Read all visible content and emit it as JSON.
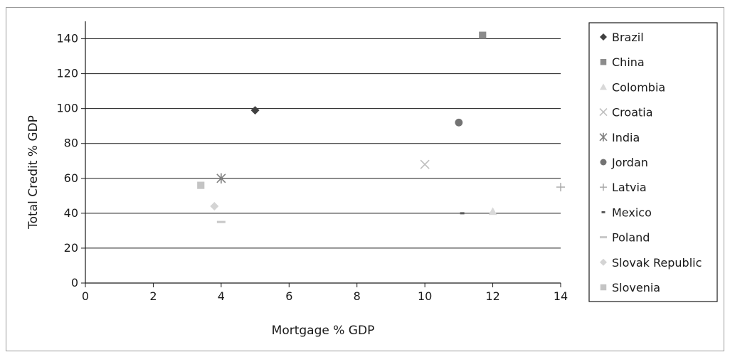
{
  "chart_data": {
    "type": "scatter",
    "title": "",
    "xlabel": "Mortgage % GDP",
    "ylabel": "Total Credit % GDP",
    "xlim": [
      0,
      14
    ],
    "ylim": [
      0,
      150
    ],
    "x_ticks": [
      0,
      2,
      4,
      6,
      8,
      10,
      12,
      14
    ],
    "y_ticks": [
      0,
      20,
      40,
      60,
      80,
      100,
      120,
      140
    ],
    "grid": "horizontal",
    "legend_position": "right",
    "series": [
      {
        "name": "Brazil",
        "marker": "diamond",
        "color": "#404040",
        "x": [
          5.0
        ],
        "y": [
          99
        ]
      },
      {
        "name": "China",
        "marker": "square",
        "color": "#8c8c8c",
        "x": [
          11.7
        ],
        "y": [
          142
        ]
      },
      {
        "name": "Colombia",
        "marker": "triangle",
        "color": "#d9d9d9",
        "x": [
          12.0
        ],
        "y": [
          41
        ]
      },
      {
        "name": "Croatia",
        "marker": "x",
        "color": "#bfbfbf",
        "x": [
          10.0
        ],
        "y": [
          68
        ]
      },
      {
        "name": "India",
        "marker": "star",
        "color": "#808080",
        "x": [
          4.0
        ],
        "y": [
          60
        ]
      },
      {
        "name": "Jordan",
        "marker": "circle",
        "color": "#737373",
        "x": [
          11.0
        ],
        "y": [
          92
        ]
      },
      {
        "name": "Latvia",
        "marker": "plus",
        "color": "#a6a6a6",
        "x": [
          14.0
        ],
        "y": [
          55
        ]
      },
      {
        "name": "Mexico",
        "marker": "dash",
        "color": "#595959",
        "x": [
          11.1
        ],
        "y": [
          40
        ]
      },
      {
        "name": "Poland",
        "marker": "longdash",
        "color": "#c8c8c8",
        "x": [
          4.0
        ],
        "y": [
          35
        ]
      },
      {
        "name": "Slovak Republic",
        "marker": "diamond",
        "color": "#d4d4d4",
        "x": [
          3.8
        ],
        "y": [
          44
        ]
      },
      {
        "name": "Slovenia",
        "marker": "square",
        "color": "#c4c4c4",
        "x": [
          3.4
        ],
        "y": [
          56
        ]
      }
    ]
  }
}
